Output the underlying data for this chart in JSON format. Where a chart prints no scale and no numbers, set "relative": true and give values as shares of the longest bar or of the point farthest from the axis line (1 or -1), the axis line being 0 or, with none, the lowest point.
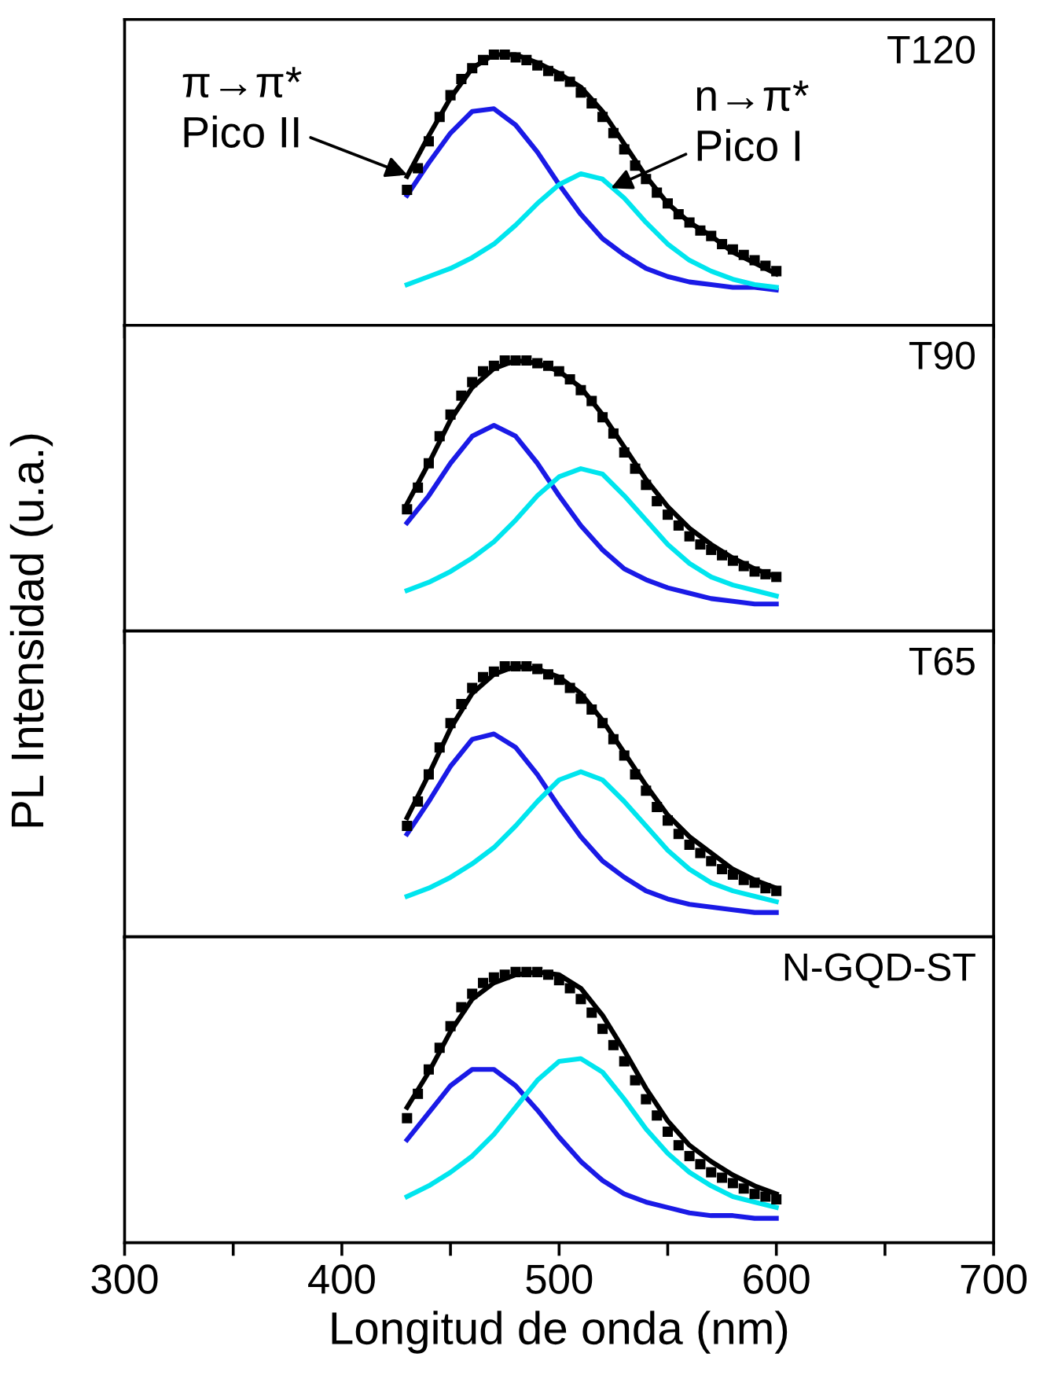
{
  "chart_data": [
    {
      "type": "line",
      "relative": true,
      "ylabel": "PL Intensidad (u.a.)",
      "xlim": [
        300,
        700
      ],
      "xticks": [
        {
          "value": 300,
          "label": null
        },
        {
          "value": 350,
          "label": null
        },
        {
          "value": 400,
          "label": null
        },
        {
          "value": 450,
          "label": null
        },
        {
          "value": 500,
          "label": null
        },
        {
          "value": 550,
          "label": null
        },
        {
          "value": 600,
          "label": null
        },
        {
          "value": 650,
          "label": null
        },
        {
          "value": 700,
          "label": null
        }
      ],
      "tick_labels": false,
      "annotations": [
        "T120",
        {
          "text": "π→π*\nPico II",
          "x": 432,
          "y": 0.55
        },
        {
          "text": "n→π*\nPico I",
          "x": 522,
          "y": 0.5
        }
      ],
      "series": [
        {
          "type": "scatter",
          "marker": "square",
          "color": "#000000",
          "x": [
            430,
            435,
            440,
            445,
            450,
            455,
            460,
            465,
            470,
            475,
            480,
            485,
            490,
            495,
            500,
            505,
            510,
            515,
            520,
            525,
            530,
            535,
            540,
            545,
            550,
            555,
            560,
            565,
            570,
            575,
            580,
            585,
            590,
            595,
            600
          ],
          "values": [
            0.5,
            0.58,
            0.68,
            0.77,
            0.85,
            0.91,
            0.95,
            0.98,
            1.0,
            1.0,
            0.99,
            0.98,
            0.96,
            0.94,
            0.92,
            0.9,
            0.86,
            0.82,
            0.77,
            0.71,
            0.65,
            0.59,
            0.54,
            0.49,
            0.45,
            0.41,
            0.38,
            0.35,
            0.33,
            0.3,
            0.28,
            0.26,
            0.24,
            0.22,
            0.2
          ]
        },
        {
          "color": "#000000",
          "x": [
            430,
            440,
            450,
            460,
            470,
            480,
            490,
            500,
            510,
            520,
            530,
            540,
            550,
            560,
            570,
            580,
            590,
            600
          ],
          "values": [
            0.55,
            0.7,
            0.84,
            0.95,
            1.0,
            1.0,
            0.97,
            0.93,
            0.88,
            0.79,
            0.67,
            0.55,
            0.45,
            0.38,
            0.33,
            0.27,
            0.23,
            0.19
          ]
        },
        {
          "color": "#1a1ae6",
          "x": [
            430,
            440,
            450,
            460,
            470,
            480,
            490,
            500,
            510,
            520,
            530,
            540,
            550,
            560,
            570,
            580,
            590,
            600
          ],
          "values": [
            0.48,
            0.6,
            0.71,
            0.79,
            0.8,
            0.74,
            0.64,
            0.52,
            0.41,
            0.32,
            0.26,
            0.21,
            0.18,
            0.16,
            0.15,
            0.14,
            0.14,
            0.13
          ]
        },
        {
          "color": "#00e5ee",
          "x": [
            430,
            440,
            450,
            460,
            470,
            480,
            490,
            500,
            510,
            520,
            530,
            540,
            550,
            560,
            570,
            580,
            590,
            600
          ],
          "values": [
            0.15,
            0.18,
            0.21,
            0.25,
            0.3,
            0.37,
            0.45,
            0.52,
            0.56,
            0.54,
            0.47,
            0.38,
            0.3,
            0.24,
            0.2,
            0.17,
            0.15,
            0.14
          ]
        }
      ]
    },
    {
      "type": "line",
      "relative": true,
      "xlim": [
        300,
        700
      ],
      "xticks": [
        {
          "value": 300,
          "label": null
        },
        {
          "value": 350,
          "label": null
        },
        {
          "value": 400,
          "label": null
        },
        {
          "value": 450,
          "label": null
        },
        {
          "value": 500,
          "label": null
        },
        {
          "value": 550,
          "label": null
        },
        {
          "value": 600,
          "label": null
        },
        {
          "value": 650,
          "label": null
        },
        {
          "value": 700,
          "label": null
        }
      ],
      "tick_labels": false,
      "annotations": [
        "T90"
      ],
      "series": [
        {
          "type": "scatter",
          "marker": "square",
          "color": "#000000",
          "x": [
            430,
            435,
            440,
            445,
            450,
            455,
            460,
            465,
            470,
            475,
            480,
            485,
            490,
            495,
            500,
            505,
            510,
            515,
            520,
            525,
            530,
            535,
            540,
            545,
            550,
            555,
            560,
            565,
            570,
            575,
            580,
            585,
            590,
            595,
            600
          ],
          "values": [
            0.45,
            0.53,
            0.62,
            0.72,
            0.8,
            0.87,
            0.92,
            0.96,
            0.98,
            1.0,
            1.0,
            1.0,
            0.99,
            0.98,
            0.96,
            0.93,
            0.89,
            0.85,
            0.79,
            0.73,
            0.66,
            0.6,
            0.54,
            0.48,
            0.43,
            0.39,
            0.35,
            0.32,
            0.3,
            0.28,
            0.26,
            0.24,
            0.22,
            0.21,
            0.2
          ]
        },
        {
          "color": "#000000",
          "x": [
            430,
            440,
            450,
            460,
            470,
            480,
            490,
            500,
            510,
            520,
            530,
            540,
            550,
            560,
            570,
            580,
            590,
            600
          ],
          "values": [
            0.47,
            0.62,
            0.78,
            0.9,
            0.97,
            1.0,
            0.99,
            0.96,
            0.9,
            0.8,
            0.68,
            0.56,
            0.46,
            0.38,
            0.32,
            0.27,
            0.23,
            0.2
          ]
        },
        {
          "color": "#1a1ae6",
          "x": [
            430,
            440,
            450,
            460,
            470,
            480,
            490,
            500,
            510,
            520,
            530,
            540,
            550,
            560,
            570,
            580,
            590,
            600
          ],
          "values": [
            0.4,
            0.5,
            0.62,
            0.72,
            0.76,
            0.72,
            0.62,
            0.5,
            0.39,
            0.3,
            0.23,
            0.19,
            0.16,
            0.14,
            0.12,
            0.11,
            0.1,
            0.1
          ]
        },
        {
          "color": "#00e5ee",
          "x": [
            430,
            440,
            450,
            460,
            470,
            480,
            490,
            500,
            510,
            520,
            530,
            540,
            550,
            560,
            570,
            580,
            590,
            600
          ],
          "values": [
            0.15,
            0.18,
            0.22,
            0.27,
            0.33,
            0.41,
            0.5,
            0.57,
            0.6,
            0.58,
            0.5,
            0.41,
            0.32,
            0.25,
            0.2,
            0.17,
            0.15,
            0.13
          ]
        }
      ]
    },
    {
      "type": "line",
      "relative": true,
      "xlim": [
        300,
        700
      ],
      "xticks": [
        {
          "value": 300,
          "label": null
        },
        {
          "value": 350,
          "label": null
        },
        {
          "value": 400,
          "label": null
        },
        {
          "value": 450,
          "label": null
        },
        {
          "value": 500,
          "label": null
        },
        {
          "value": 550,
          "label": null
        },
        {
          "value": 600,
          "label": null
        },
        {
          "value": 650,
          "label": null
        },
        {
          "value": 700,
          "label": null
        }
      ],
      "tick_labels": false,
      "annotations": [
        "T65"
      ],
      "series": [
        {
          "type": "scatter",
          "marker": "square",
          "color": "#000000",
          "x": [
            430,
            435,
            440,
            445,
            450,
            455,
            460,
            465,
            470,
            475,
            480,
            485,
            490,
            495,
            500,
            505,
            510,
            515,
            520,
            525,
            530,
            535,
            540,
            545,
            550,
            555,
            560,
            565,
            570,
            575,
            580,
            585,
            590,
            595,
            600
          ],
          "values": [
            0.41,
            0.5,
            0.6,
            0.7,
            0.79,
            0.86,
            0.92,
            0.96,
            0.98,
            1.0,
            1.0,
            1.0,
            0.99,
            0.97,
            0.95,
            0.92,
            0.88,
            0.84,
            0.79,
            0.73,
            0.67,
            0.6,
            0.54,
            0.48,
            0.43,
            0.38,
            0.34,
            0.31,
            0.28,
            0.25,
            0.23,
            0.21,
            0.2,
            0.18,
            0.17
          ]
        },
        {
          "color": "#000000",
          "x": [
            430,
            440,
            450,
            460,
            470,
            480,
            490,
            500,
            510,
            520,
            530,
            540,
            550,
            560,
            570,
            580,
            590,
            600
          ],
          "values": [
            0.44,
            0.6,
            0.77,
            0.9,
            0.97,
            1.0,
            0.99,
            0.96,
            0.9,
            0.8,
            0.68,
            0.56,
            0.45,
            0.37,
            0.31,
            0.25,
            0.21,
            0.18
          ]
        },
        {
          "color": "#1a1ae6",
          "x": [
            430,
            440,
            450,
            460,
            470,
            480,
            490,
            500,
            510,
            520,
            530,
            540,
            550,
            560,
            570,
            580,
            590,
            600
          ],
          "values": [
            0.38,
            0.5,
            0.63,
            0.73,
            0.75,
            0.7,
            0.6,
            0.48,
            0.37,
            0.28,
            0.22,
            0.17,
            0.14,
            0.12,
            0.11,
            0.1,
            0.09,
            0.09
          ]
        },
        {
          "color": "#00e5ee",
          "x": [
            430,
            440,
            450,
            460,
            470,
            480,
            490,
            500,
            510,
            520,
            530,
            540,
            550,
            560,
            570,
            580,
            590,
            600
          ],
          "values": [
            0.15,
            0.18,
            0.22,
            0.27,
            0.33,
            0.41,
            0.5,
            0.58,
            0.61,
            0.58,
            0.5,
            0.41,
            0.32,
            0.25,
            0.2,
            0.17,
            0.15,
            0.13
          ]
        }
      ]
    },
    {
      "type": "line",
      "relative": true,
      "xlabel": "Longitud de onda (nm)",
      "xlim": [
        300,
        700
      ],
      "xticks": [
        300,
        {
          "value": 350,
          "label": null
        },
        400,
        {
          "value": 450,
          "label": null
        },
        500,
        {
          "value": 550,
          "label": null
        },
        600,
        {
          "value": 650,
          "label": null
        },
        700
      ],
      "tick_labels": "x",
      "annotations": [
        "N-GQD-ST"
      ],
      "series": [
        {
          "type": "scatter",
          "marker": "square",
          "color": "#000000",
          "x": [
            430,
            435,
            440,
            445,
            450,
            455,
            460,
            465,
            470,
            475,
            480,
            485,
            490,
            495,
            500,
            505,
            510,
            515,
            520,
            525,
            530,
            535,
            540,
            545,
            550,
            555,
            560,
            565,
            570,
            575,
            580,
            585,
            590,
            595,
            600
          ],
          "values": [
            0.46,
            0.55,
            0.64,
            0.72,
            0.8,
            0.87,
            0.92,
            0.96,
            0.98,
            0.99,
            1.0,
            1.0,
            1.0,
            0.99,
            0.97,
            0.94,
            0.9,
            0.85,
            0.79,
            0.73,
            0.67,
            0.6,
            0.53,
            0.47,
            0.41,
            0.36,
            0.32,
            0.29,
            0.26,
            0.24,
            0.22,
            0.2,
            0.18,
            0.17,
            0.16
          ]
        },
        {
          "color": "#000000",
          "x": [
            430,
            440,
            450,
            460,
            470,
            480,
            490,
            500,
            510,
            520,
            530,
            540,
            550,
            560,
            570,
            580,
            590,
            600
          ],
          "values": [
            0.5,
            0.63,
            0.78,
            0.9,
            0.96,
            0.99,
            1.0,
            0.99,
            0.94,
            0.84,
            0.71,
            0.57,
            0.45,
            0.36,
            0.3,
            0.25,
            0.21,
            0.18
          ]
        },
        {
          "color": "#1a1ae6",
          "x": [
            430,
            440,
            450,
            460,
            470,
            480,
            490,
            500,
            510,
            520,
            530,
            540,
            550,
            560,
            570,
            580,
            590,
            600
          ],
          "values": [
            0.38,
            0.48,
            0.58,
            0.64,
            0.64,
            0.58,
            0.49,
            0.39,
            0.3,
            0.23,
            0.18,
            0.15,
            0.13,
            0.11,
            0.1,
            0.1,
            0.09,
            0.09
          ]
        },
        {
          "color": "#00e5ee",
          "x": [
            430,
            440,
            450,
            460,
            470,
            480,
            490,
            500,
            510,
            520,
            530,
            540,
            550,
            560,
            570,
            580,
            590,
            600
          ],
          "values": [
            0.17,
            0.21,
            0.26,
            0.32,
            0.4,
            0.5,
            0.6,
            0.67,
            0.68,
            0.63,
            0.53,
            0.42,
            0.33,
            0.26,
            0.21,
            0.17,
            0.15,
            0.13
          ]
        }
      ]
    }
  ]
}
